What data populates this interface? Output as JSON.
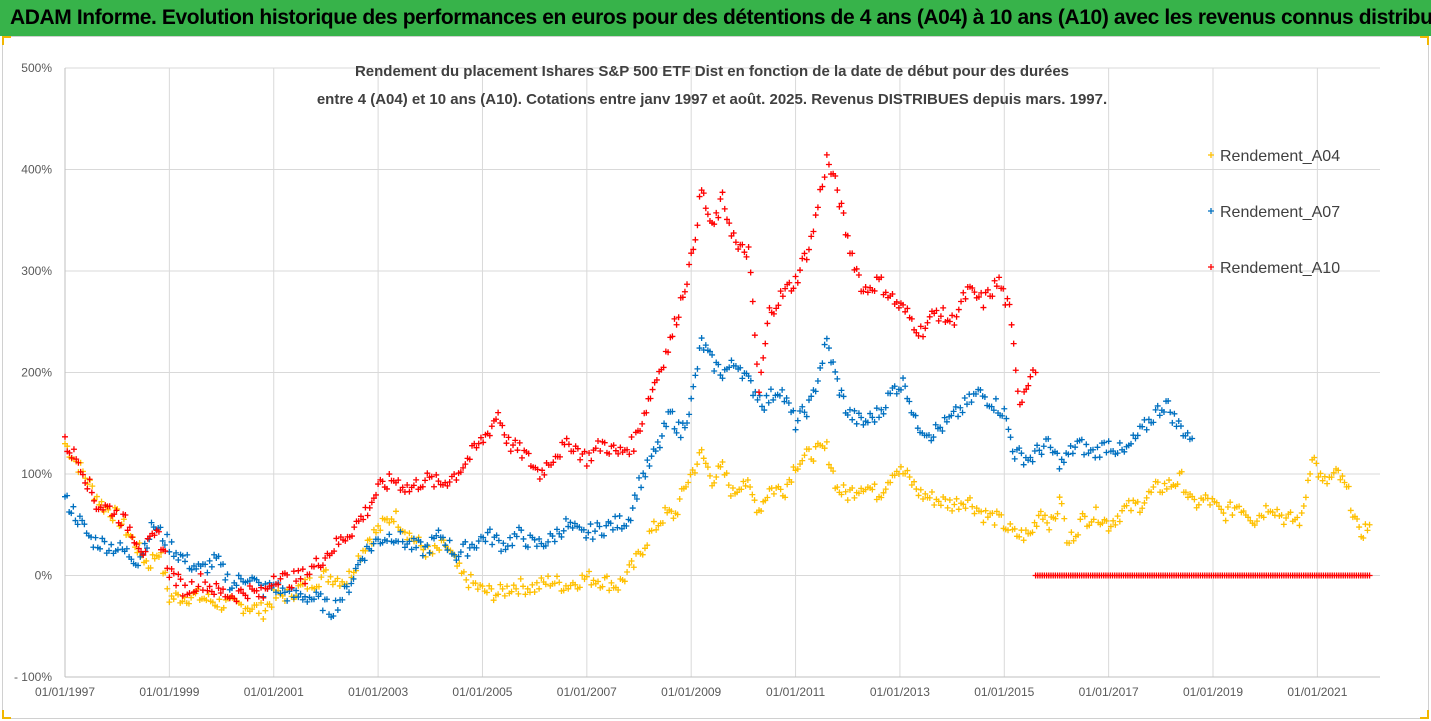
{
  "banner": {
    "title": "ADAM Informe. Evolution historique des performances en euros pour des détentions de 4 ans (A04) à 10 ans (A10) avec les revenus connus distribués"
  },
  "colors": {
    "banner_bg": "#37b34a",
    "A04": "#ffc000",
    "A07": "#0070c0",
    "A10": "#ff0000",
    "grid": "#d9d9d9"
  },
  "chart_data": {
    "type": "scatter",
    "title_lines": [
      "Rendement du placement Ishares S&P 500 ETF Dist en fonction de la date de début pour des durées",
      "entre 4 (A04) et 10 ans (A10). Cotations entre janv 1997 et août. 2025. Revenus DISTRIBUES depuis mars. 1997."
    ],
    "ylim": [
      -100,
      500
    ],
    "yticks": [
      "- 100%",
      "0%",
      "100%",
      "200%",
      "300%",
      "400%",
      "500%"
    ],
    "xticks": [
      "01/01/1997",
      "01/01/1999",
      "01/01/2001",
      "01/01/2003",
      "01/01/2005",
      "01/01/2007",
      "01/01/2009",
      "01/01/2011",
      "01/01/2013",
      "01/01/2015",
      "01/01/2017",
      "01/01/2019",
      "01/01/2021"
    ],
    "x_unit": "year",
    "grid": true,
    "legend_position": "right",
    "series": [
      {
        "name": "Rendement_A04",
        "color_key": "A04",
        "points": [
          [
            1997.0,
            130
          ],
          [
            1997.3,
            105
          ],
          [
            1997.7,
            70
          ],
          [
            1998.0,
            58
          ],
          [
            1998.3,
            35
          ],
          [
            1998.6,
            10
          ],
          [
            1998.8,
            25
          ],
          [
            1999.0,
            -22
          ],
          [
            1999.5,
            -20
          ],
          [
            2000.0,
            -28
          ],
          [
            2000.5,
            -30
          ],
          [
            2000.8,
            -35
          ],
          [
            2001.0,
            -22
          ],
          [
            2001.3,
            -18
          ],
          [
            2001.6,
            -10
          ],
          [
            2002.0,
            0
          ],
          [
            2002.4,
            -5
          ],
          [
            2002.8,
            35
          ],
          [
            2003.0,
            45
          ],
          [
            2003.3,
            60
          ],
          [
            2003.6,
            40
          ],
          [
            2004.0,
            20
          ],
          [
            2004.3,
            30
          ],
          [
            2004.6,
            0
          ],
          [
            2005.0,
            -15
          ],
          [
            2005.3,
            -18
          ],
          [
            2005.6,
            -10
          ],
          [
            2006.0,
            -12
          ],
          [
            2006.3,
            -5
          ],
          [
            2006.6,
            -10
          ],
          [
            2007.0,
            -2
          ],
          [
            2007.3,
            -5
          ],
          [
            2007.6,
            -10
          ],
          [
            2007.9,
            10
          ],
          [
            2008.2,
            40
          ],
          [
            2008.5,
            60
          ],
          [
            2008.7,
            60
          ],
          [
            2008.9,
            90
          ],
          [
            2009.2,
            120
          ],
          [
            2009.4,
            95
          ],
          [
            2009.6,
            105
          ],
          [
            2009.8,
            80
          ],
          [
            2010.0,
            95
          ],
          [
            2010.3,
            65
          ],
          [
            2010.5,
            85
          ],
          [
            2010.8,
            85
          ],
          [
            2011.0,
            110
          ],
          [
            2011.3,
            120
          ],
          [
            2011.6,
            125
          ],
          [
            2011.8,
            85
          ],
          [
            2012.0,
            80
          ],
          [
            2012.3,
            90
          ],
          [
            2012.6,
            80
          ],
          [
            2012.9,
            105
          ],
          [
            2013.1,
            100
          ],
          [
            2013.4,
            80
          ],
          [
            2013.7,
            75
          ],
          [
            2014.0,
            70
          ],
          [
            2014.3,
            75
          ],
          [
            2014.6,
            60
          ],
          [
            2014.9,
            55
          ],
          [
            2015.2,
            40
          ],
          [
            2015.5,
            40
          ],
          [
            2015.7,
            65
          ],
          [
            2015.9,
            50
          ],
          [
            2016.1,
            75
          ],
          [
            2016.2,
            30
          ],
          [
            2016.5,
            55
          ],
          [
            2016.8,
            60
          ],
          [
            2017.0,
            50
          ],
          [
            2017.3,
            65
          ],
          [
            2017.6,
            70
          ],
          [
            2017.9,
            85
          ],
          [
            2018.2,
            90
          ],
          [
            2018.4,
            95
          ],
          [
            2018.6,
            70
          ],
          [
            2018.9,
            75
          ],
          [
            2019.2,
            60
          ],
          [
            2019.5,
            70
          ],
          [
            2019.8,
            55
          ],
          [
            2020.1,
            70
          ],
          [
            2020.4,
            55
          ],
          [
            2020.7,
            55
          ],
          [
            2020.9,
            120
          ],
          [
            2021.1,
            90
          ],
          [
            2021.4,
            100
          ],
          [
            2021.6,
            80
          ],
          [
            2021.8,
            40
          ],
          [
            2022.0,
            50
          ]
        ]
      },
      {
        "name": "Rendement_A07",
        "color_key": "A07",
        "points": [
          [
            1997.0,
            75
          ],
          [
            1997.2,
            60
          ],
          [
            1997.5,
            35
          ],
          [
            1997.8,
            30
          ],
          [
            1998.1,
            25
          ],
          [
            1998.4,
            15
          ],
          [
            1998.7,
            50
          ],
          [
            1999.0,
            30
          ],
          [
            1999.3,
            15
          ],
          [
            1999.6,
            5
          ],
          [
            1999.9,
            15
          ],
          [
            2000.2,
            -10
          ],
          [
            2000.5,
            0
          ],
          [
            2000.8,
            -15
          ],
          [
            2001.0,
            -10
          ],
          [
            2001.3,
            -20
          ],
          [
            2001.6,
            -20
          ],
          [
            2001.9,
            -25
          ],
          [
            2002.1,
            -35
          ],
          [
            2002.4,
            -15
          ],
          [
            2002.7,
            20
          ],
          [
            2003.0,
            35
          ],
          [
            2003.3,
            40
          ],
          [
            2003.6,
            30
          ],
          [
            2003.9,
            25
          ],
          [
            2004.2,
            40
          ],
          [
            2004.5,
            20
          ],
          [
            2004.8,
            30
          ],
          [
            2005.1,
            40
          ],
          [
            2005.4,
            30
          ],
          [
            2005.7,
            40
          ],
          [
            2006.0,
            30
          ],
          [
            2006.3,
            35
          ],
          [
            2006.6,
            50
          ],
          [
            2006.9,
            40
          ],
          [
            2007.2,
            45
          ],
          [
            2007.5,
            50
          ],
          [
            2007.8,
            55
          ],
          [
            2008.0,
            90
          ],
          [
            2008.2,
            110
          ],
          [
            2008.4,
            130
          ],
          [
            2008.6,
            160
          ],
          [
            2008.8,
            140
          ],
          [
            2009.0,
            170
          ],
          [
            2009.2,
            230
          ],
          [
            2009.4,
            210
          ],
          [
            2009.6,
            200
          ],
          [
            2009.9,
            210
          ],
          [
            2010.1,
            190
          ],
          [
            2010.4,
            170
          ],
          [
            2010.7,
            185
          ],
          [
            2011.0,
            150
          ],
          [
            2011.3,
            170
          ],
          [
            2011.6,
            230
          ],
          [
            2011.8,
            190
          ],
          [
            2012.0,
            160
          ],
          [
            2012.3,
            150
          ],
          [
            2012.6,
            160
          ],
          [
            2012.9,
            185
          ],
          [
            2013.1,
            190
          ],
          [
            2013.3,
            150
          ],
          [
            2013.6,
            140
          ],
          [
            2013.9,
            150
          ],
          [
            2014.2,
            165
          ],
          [
            2014.5,
            180
          ],
          [
            2014.8,
            170
          ],
          [
            2015.0,
            160
          ],
          [
            2015.2,
            120
          ],
          [
            2015.5,
            115
          ],
          [
            2015.8,
            130
          ],
          [
            2016.1,
            110
          ],
          [
            2016.4,
            130
          ],
          [
            2016.7,
            120
          ],
          [
            2017.0,
            130
          ],
          [
            2017.3,
            120
          ],
          [
            2017.6,
            140
          ],
          [
            2017.9,
            160
          ],
          [
            2018.1,
            170
          ],
          [
            2018.3,
            150
          ],
          [
            2018.6,
            135
          ]
        ]
      },
      {
        "name": "Rendement_A10",
        "color_key": "A10",
        "points": [
          [
            1997.0,
            130
          ],
          [
            1997.3,
            110
          ],
          [
            1997.6,
            70
          ],
          [
            1997.9,
            65
          ],
          [
            1998.2,
            50
          ],
          [
            1998.5,
            25
          ],
          [
            1998.8,
            40
          ],
          [
            1999.0,
            5
          ],
          [
            1999.3,
            -15
          ],
          [
            1999.6,
            -5
          ],
          [
            1999.9,
            -15
          ],
          [
            2000.2,
            -20
          ],
          [
            2000.5,
            -15
          ],
          [
            2000.8,
            -20
          ],
          [
            2001.0,
            0
          ],
          [
            2001.3,
            -5
          ],
          [
            2001.6,
            0
          ],
          [
            2001.9,
            15
          ],
          [
            2002.2,
            30
          ],
          [
            2002.5,
            45
          ],
          [
            2002.8,
            65
          ],
          [
            2003.0,
            85
          ],
          [
            2003.3,
            95
          ],
          [
            2003.6,
            85
          ],
          [
            2003.9,
            95
          ],
          [
            2004.2,
            90
          ],
          [
            2004.5,
            100
          ],
          [
            2004.8,
            120
          ],
          [
            2005.1,
            140
          ],
          [
            2005.3,
            160
          ],
          [
            2005.5,
            130
          ],
          [
            2005.8,
            120
          ],
          [
            2006.1,
            100
          ],
          [
            2006.4,
            120
          ],
          [
            2006.7,
            130
          ],
          [
            2007.0,
            115
          ],
          [
            2007.3,
            130
          ],
          [
            2007.6,
            120
          ],
          [
            2007.9,
            130
          ],
          [
            2008.1,
            160
          ],
          [
            2008.3,
            190
          ],
          [
            2008.6,
            230
          ],
          [
            2008.8,
            270
          ],
          [
            2009.0,
            310
          ],
          [
            2009.2,
            380
          ],
          [
            2009.4,
            340
          ],
          [
            2009.6,
            370
          ],
          [
            2009.9,
            320
          ],
          [
            2010.1,
            320
          ],
          [
            2010.3,
            180
          ],
          [
            2010.5,
            260
          ],
          [
            2010.8,
            280
          ],
          [
            2011.0,
            290
          ],
          [
            2011.3,
            330
          ],
          [
            2011.6,
            410
          ],
          [
            2011.8,
            380
          ],
          [
            2012.0,
            330
          ],
          [
            2012.3,
            280
          ],
          [
            2012.6,
            290
          ],
          [
            2012.9,
            270
          ],
          [
            2013.1,
            260
          ],
          [
            2013.4,
            240
          ],
          [
            2013.7,
            260
          ],
          [
            2014.0,
            250
          ],
          [
            2014.3,
            280
          ],
          [
            2014.6,
            270
          ],
          [
            2014.9,
            290
          ],
          [
            2015.1,
            260
          ],
          [
            2015.3,
            170
          ],
          [
            2015.5,
            200
          ],
          [
            2015.6,
            200
          ]
        ]
      },
      {
        "name": "",
        "color_key": "A10",
        "points": [
          [
            2015.6,
            0
          ],
          [
            2022.0,
            0
          ]
        ]
      }
    ]
  }
}
